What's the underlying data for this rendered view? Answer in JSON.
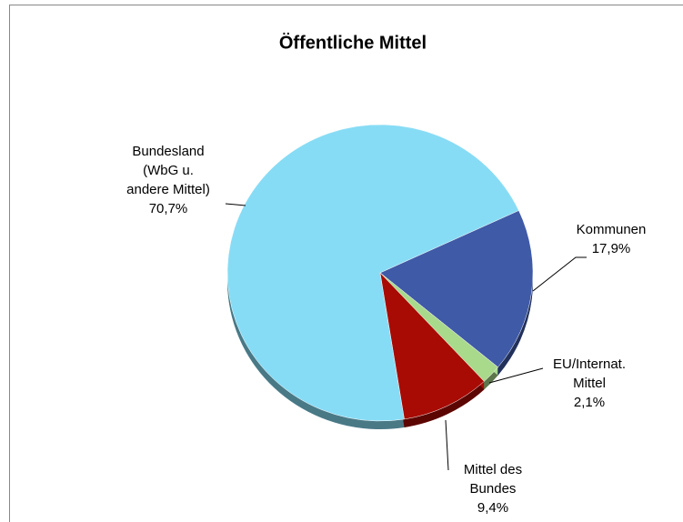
{
  "chart_data": {
    "type": "pie",
    "title": "Öffentliche Mittel",
    "categories": [
      "Bundesland\n(WbG u.\nandere Mittel)",
      "Kommunen",
      "EU/Internat.\nMittel",
      "Mittel des\nBundes"
    ],
    "values": [
      70.7,
      17.9,
      2.1,
      9.4
    ],
    "value_labels": [
      "70,7%",
      "17,9%",
      "2,1%",
      "9,4%"
    ],
    "colors": [
      "#87dcf5",
      "#3f5aa6",
      "#a9d98b",
      "#a80b04"
    ]
  }
}
